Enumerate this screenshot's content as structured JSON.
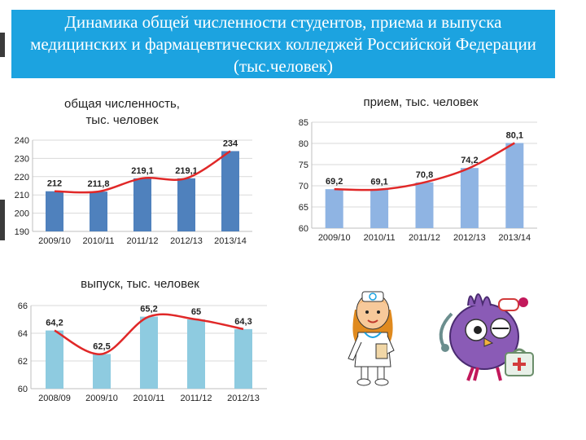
{
  "slide": {
    "title": "Динамика общей численности студентов, приема и выпуска медицинских и фармацевтических колледжей Российской Федерации (тыс.человек)"
  },
  "colors": {
    "banner": "#1ca3e0",
    "bar_dark_blue": "#4f81bd",
    "bar_light_blue": "#8fb4e3",
    "bar_cyan": "#8ecbe0",
    "trend_line": "#e02828"
  },
  "chart_data": [
    {
      "id": "total",
      "type": "bar",
      "title": "общая численность,\nтыс. человек",
      "categories": [
        "2009/10",
        "2010/11",
        "2011/12",
        "2012/13",
        "2013/14"
      ],
      "values": [
        212,
        211.8,
        219.1,
        219.1,
        234
      ],
      "labels": [
        "212",
        "211,8",
        "219,1",
        "219,1",
        "234"
      ],
      "ylim": [
        190,
        240
      ],
      "yticks": [
        190,
        200,
        210,
        220,
        230,
        240
      ],
      "grid": true,
      "trend_line": true
    },
    {
      "id": "admission",
      "type": "bar",
      "title": "прием, тыс. человек",
      "categories": [
        "2009/10",
        "2010/11",
        "2011/12",
        "2012/13",
        "2013/14"
      ],
      "values": [
        69.2,
        69.1,
        70.8,
        74.2,
        80.1
      ],
      "labels": [
        "69,2",
        "69,1",
        "70,8",
        "74,2",
        "80,1"
      ],
      "ylim": [
        60,
        85
      ],
      "yticks": [
        60,
        65,
        70,
        75,
        80,
        85
      ],
      "grid": true,
      "trend_line": true
    },
    {
      "id": "graduation",
      "type": "bar",
      "title": "выпуск, тыс. человек",
      "categories": [
        "2008/09",
        "2009/10",
        "2010/11",
        "2011/12",
        "2012/13"
      ],
      "values": [
        64.2,
        62.5,
        65.2,
        65,
        64.3
      ],
      "labels": [
        "64,2",
        "62,5",
        "65,2",
        "65",
        "64,3"
      ],
      "ylim": [
        60,
        66
      ],
      "yticks": [
        60,
        62,
        64,
        66
      ],
      "grid": true,
      "trend_line": true
    }
  ],
  "illustrations": {
    "left": "nurse-cartoon",
    "right": "doctor-bird-cartoon"
  }
}
